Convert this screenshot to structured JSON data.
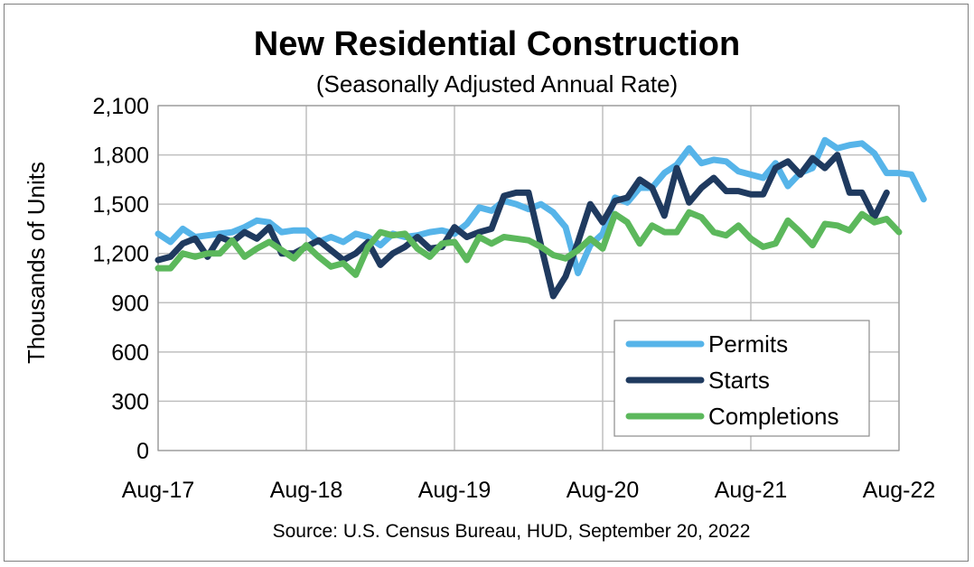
{
  "chart_data": {
    "type": "line",
    "title": "New Residential Construction",
    "subtitle": "(Seasonally Adjusted Annual Rate)",
    "ylabel": "Thousands of Units",
    "xlabel": "",
    "source": "Source:  U.S. Census Bureau, HUD, September 20, 2022",
    "ylim": [
      0,
      2100
    ],
    "yticks": [
      "0",
      "300",
      "600",
      "900",
      "1,200",
      "1,500",
      "1,800",
      "2,100"
    ],
    "ytick_values": [
      0,
      300,
      600,
      900,
      1200,
      1500,
      1800,
      2100
    ],
    "xtick_labels": [
      "Aug-17",
      "Aug-18",
      "Aug-19",
      "Aug-20",
      "Aug-21",
      "Aug-22"
    ],
    "xtick_index": [
      0,
      12,
      24,
      36,
      48,
      60
    ],
    "grid": true,
    "legend_position": "bottom-right",
    "series": [
      {
        "name": "Permits",
        "color": "#56b4e9",
        "values": [
          1320,
          1270,
          1350,
          1300,
          1310,
          1320,
          1330,
          1360,
          1400,
          1390,
          1330,
          1340,
          1340,
          1270,
          1300,
          1270,
          1320,
          1300,
          1250,
          1320,
          1300,
          1310,
          1330,
          1340,
          1320,
          1380,
          1480,
          1460,
          1520,
          1500,
          1470,
          1500,
          1450,
          1360,
          1080,
          1250,
          1320,
          1540,
          1510,
          1600,
          1600,
          1690,
          1740,
          1840,
          1750,
          1770,
          1760,
          1700,
          1680,
          1660,
          1750,
          1610,
          1690,
          1720,
          1890,
          1840,
          1860,
          1870,
          1810,
          1690,
          1690,
          1680,
          1530
        ]
      },
      {
        "name": "Starts",
        "color": "#1f3a5f",
        "values": [
          1160,
          1180,
          1260,
          1290,
          1180,
          1300,
          1270,
          1330,
          1290,
          1360,
          1200,
          1200,
          1240,
          1280,
          1220,
          1160,
          1200,
          1270,
          1130,
          1200,
          1240,
          1300,
          1230,
          1240,
          1360,
          1300,
          1330,
          1350,
          1550,
          1570,
          1570,
          1250,
          940,
          1060,
          1270,
          1500,
          1390,
          1520,
          1540,
          1650,
          1600,
          1430,
          1720,
          1510,
          1600,
          1660,
          1580,
          1580,
          1560,
          1560,
          1720,
          1760,
          1680,
          1780,
          1720,
          1800,
          1570,
          1570,
          1420,
          1570
        ]
      },
      {
        "name": "Completions",
        "color": "#5cb85c",
        "values": [
          1110,
          1110,
          1200,
          1180,
          1200,
          1200,
          1280,
          1180,
          1230,
          1270,
          1220,
          1170,
          1250,
          1180,
          1120,
          1140,
          1070,
          1240,
          1330,
          1310,
          1320,
          1230,
          1180,
          1260,
          1270,
          1160,
          1300,
          1260,
          1300,
          1290,
          1280,
          1240,
          1190,
          1170,
          1220,
          1290,
          1230,
          1440,
          1390,
          1260,
          1370,
          1330,
          1330,
          1450,
          1420,
          1330,
          1310,
          1370,
          1290,
          1240,
          1260,
          1400,
          1330,
          1250,
          1380,
          1370,
          1340,
          1440,
          1390,
          1410,
          1330
        ]
      }
    ]
  }
}
